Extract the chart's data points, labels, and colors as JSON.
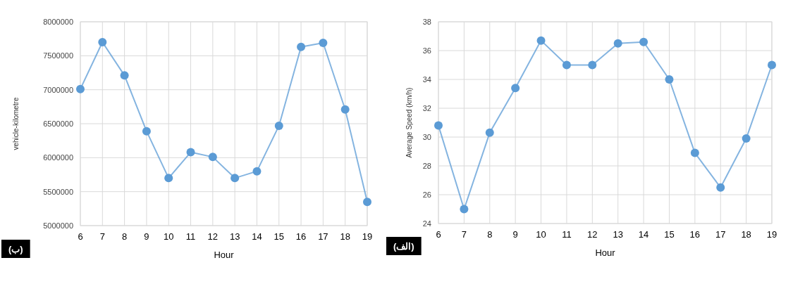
{
  "chart_data": [
    {
      "type": "line",
      "xlabel": "Hour",
      "ylabel": "vehicle-kilometre",
      "x": [
        6,
        7,
        8,
        9,
        10,
        11,
        12,
        13,
        14,
        15,
        16,
        17,
        18,
        19
      ],
      "xlim": [
        6,
        19
      ],
      "xticks": [
        6,
        7,
        8,
        9,
        10,
        11,
        12,
        13,
        14,
        15,
        16,
        17,
        18,
        19
      ],
      "ylim": [
        5000000,
        8000000
      ],
      "yticks": [
        5000000,
        5500000,
        6000000,
        6500000,
        7000000,
        7500000,
        8000000
      ],
      "grid": true,
      "marker": "circle",
      "line_style": "solid",
      "series": [
        {
          "color": "#5b9bd5",
          "values": [
            7010000,
            7700000,
            7210000,
            6390000,
            5700000,
            6080000,
            6010000,
            5700000,
            5800000,
            6470000,
            7630000,
            7690000,
            6710000,
            5350000
          ]
        }
      ],
      "annotations": [
        "(ب)"
      ]
    },
    {
      "type": "line",
      "xlabel": "Hour",
      "ylabel": "Average Speed (km/h)",
      "x": [
        6,
        7,
        8,
        9,
        10,
        11,
        12,
        13,
        14,
        15,
        16,
        17,
        18,
        19
      ],
      "xlim": [
        6,
        19
      ],
      "xticks": [
        6,
        7,
        8,
        9,
        10,
        11,
        12,
        13,
        14,
        15,
        16,
        17,
        18,
        19
      ],
      "ylim": [
        24,
        38
      ],
      "yticks": [
        24,
        26,
        28,
        30,
        32,
        34,
        36,
        38
      ],
      "grid": true,
      "marker": "circle",
      "line_style": "solid",
      "series": [
        {
          "color": "#5b9bd5",
          "values": [
            30.8,
            25.0,
            30.3,
            33.4,
            36.7,
            35.0,
            35.0,
            36.5,
            36.6,
            34.0,
            28.9,
            26.5,
            29.9,
            35.0
          ]
        }
      ],
      "annotations": [
        "(الف)"
      ]
    }
  ]
}
